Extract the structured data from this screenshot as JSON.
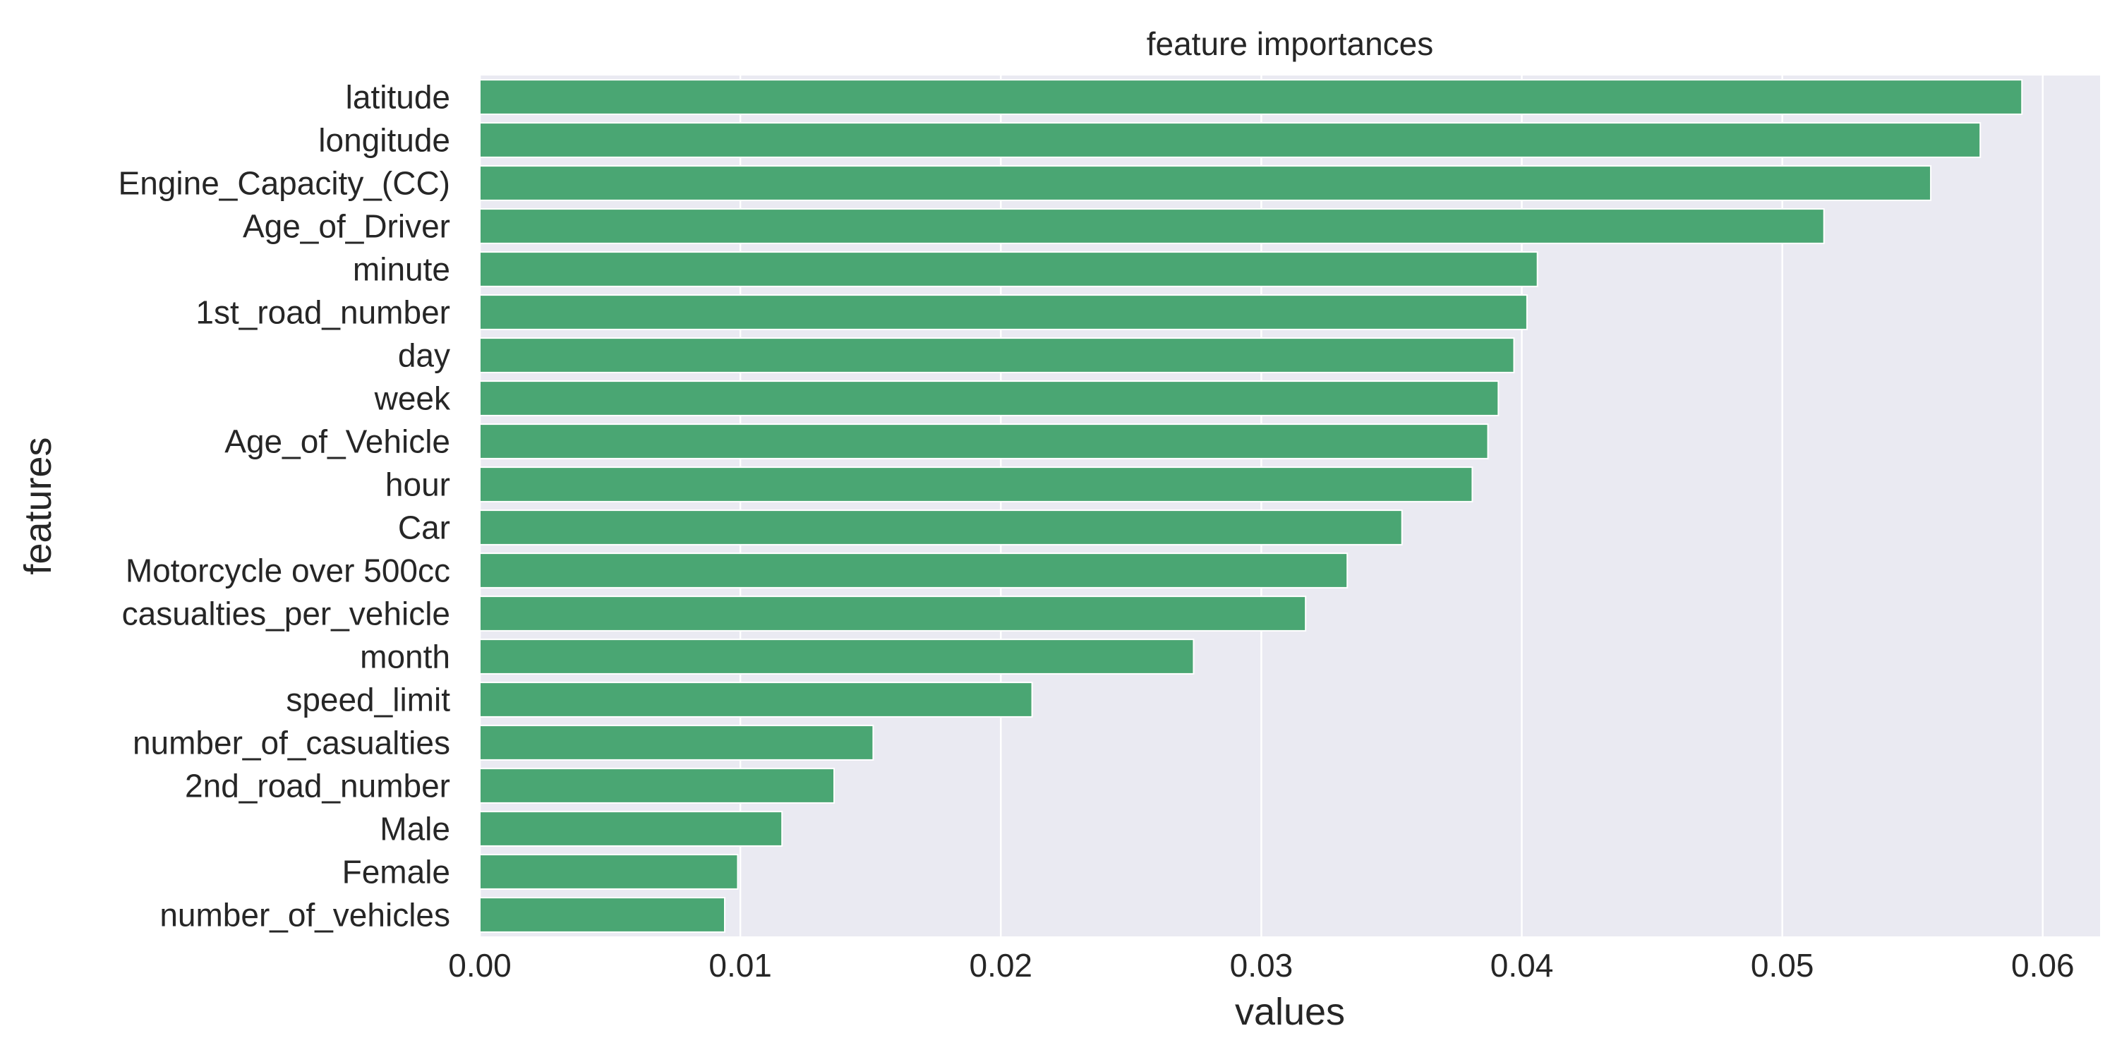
{
  "chart_data": {
    "type": "bar",
    "orientation": "horizontal",
    "title": "feature importances",
    "xlabel": "values",
    "ylabel": "features",
    "categories": [
      "latitude",
      "longitude",
      "Engine_Capacity_(CC)",
      "Age_of_Driver",
      "minute",
      "1st_road_number",
      "day",
      "week",
      "Age_of_Vehicle",
      "hour",
      "Car",
      "Motorcycle over 500cc",
      "casualties_per_vehicle",
      "month",
      "speed_limit",
      "number_of_casualties",
      "2nd_road_number",
      "Male",
      "Female",
      "number_of_vehicles"
    ],
    "values": [
      0.0592,
      0.0576,
      0.0557,
      0.0516,
      0.0406,
      0.0402,
      0.0397,
      0.0391,
      0.0387,
      0.0381,
      0.0354,
      0.0333,
      0.0317,
      0.0274,
      0.0212,
      0.0151,
      0.0136,
      0.0116,
      0.0099,
      0.0094
    ],
    "xlim": [
      0,
      0.0622
    ],
    "xticks": [
      0.0,
      0.01,
      0.02,
      0.03,
      0.04,
      0.05,
      0.06
    ],
    "xtick_labels": [
      "0.00",
      "0.01",
      "0.02",
      "0.03",
      "0.04",
      "0.05",
      "0.06"
    ],
    "grid": true,
    "bar_color": "#4aa673",
    "background_color": "#eaeaf2",
    "grid_color": "#ffffff"
  }
}
